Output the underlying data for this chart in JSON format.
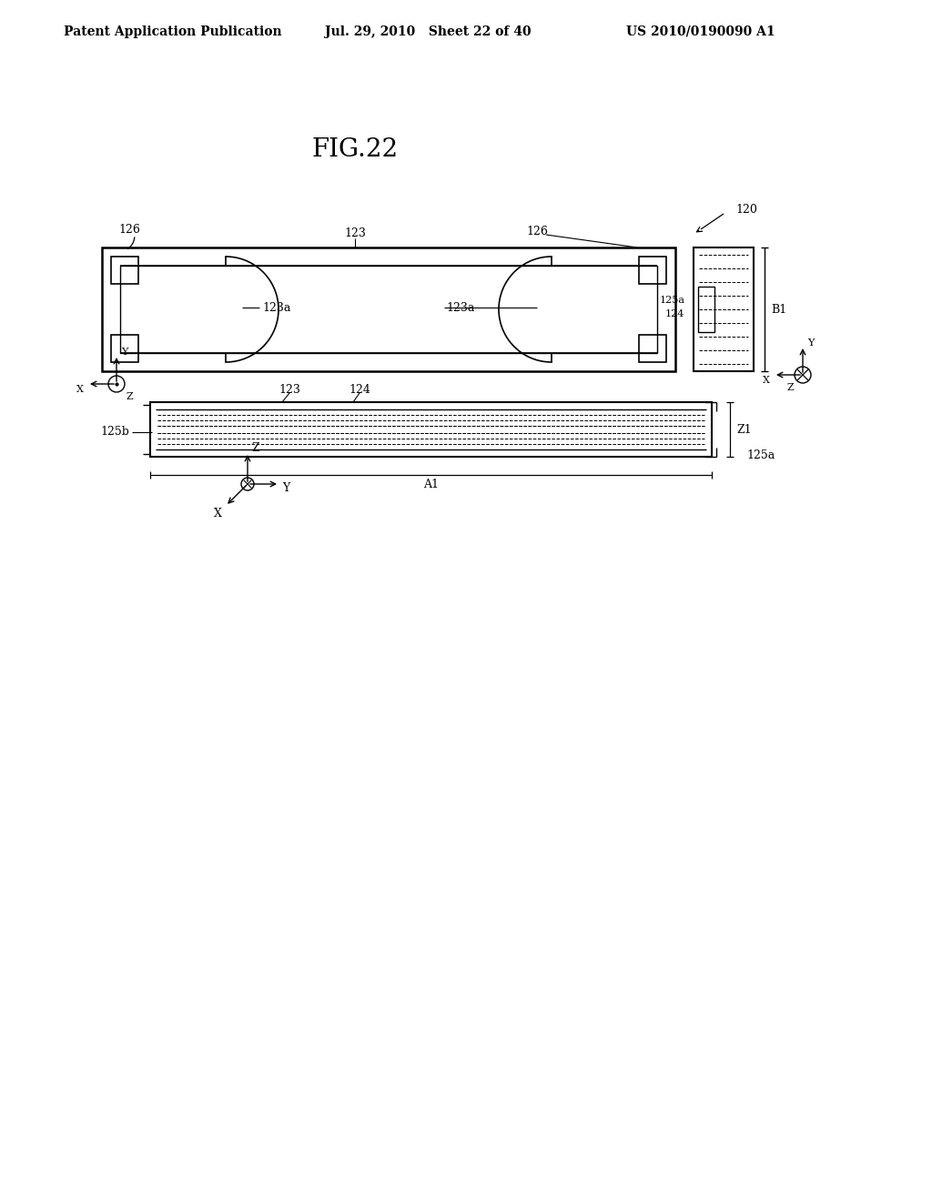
{
  "fig_label": "FIG.22",
  "patent_header_left": "Patent Application Publication",
  "patent_header_mid": "Jul. 29, 2010   Sheet 22 of 40",
  "patent_header_right": "US 2010/0190090 A1",
  "ref_120": "120",
  "ref_123": "123",
  "ref_123a": "123a",
  "ref_124": "124",
  "ref_125a": "125a",
  "ref_125b": "125b",
  "ref_126": "126",
  "ref_B1": "B1",
  "ref_A1": "A1",
  "ref_Z1": "Z1",
  "bg_color": "#ffffff",
  "line_color": "#000000"
}
